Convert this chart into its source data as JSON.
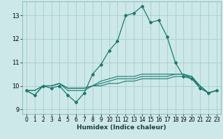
{
  "title": "",
  "xlabel": "Humidex (Indice chaleur)",
  "background_color": "#cce8e8",
  "grid_color": "#aacccc",
  "line_color": "#1a7a6e",
  "xlim": [
    -0.5,
    23.5
  ],
  "ylim": [
    8.8,
    13.6
  ],
  "yticks": [
    9,
    10,
    11,
    12,
    13
  ],
  "xticks": [
    0,
    1,
    2,
    3,
    4,
    5,
    6,
    7,
    8,
    9,
    10,
    11,
    12,
    13,
    14,
    15,
    16,
    17,
    18,
    19,
    20,
    21,
    22,
    23
  ],
  "series": [
    [
      9.8,
      9.6,
      10.0,
      9.9,
      10.0,
      9.6,
      9.3,
      9.7,
      10.5,
      10.9,
      11.5,
      11.9,
      13.0,
      13.1,
      13.4,
      12.7,
      12.8,
      12.1,
      11.0,
      10.4,
      10.3,
      9.9,
      9.7,
      9.8
    ],
    [
      9.8,
      9.6,
      10.0,
      10.0,
      10.1,
      9.8,
      9.8,
      9.8,
      10.0,
      10.2,
      10.3,
      10.4,
      10.4,
      10.4,
      10.5,
      10.5,
      10.5,
      10.5,
      10.5,
      10.5,
      10.3,
      10.0,
      9.7,
      9.8
    ],
    [
      9.8,
      9.8,
      10.0,
      10.0,
      10.1,
      9.9,
      9.9,
      9.9,
      10.0,
      10.1,
      10.2,
      10.3,
      10.3,
      10.3,
      10.4,
      10.4,
      10.4,
      10.4,
      10.5,
      10.5,
      10.4,
      10.0,
      9.7,
      9.8
    ],
    [
      9.8,
      9.8,
      10.0,
      10.0,
      10.1,
      9.9,
      9.9,
      9.9,
      10.0,
      10.0,
      10.1,
      10.1,
      10.2,
      10.2,
      10.3,
      10.3,
      10.3,
      10.3,
      10.4,
      10.4,
      10.4,
      9.9,
      9.7,
      9.8
    ]
  ]
}
